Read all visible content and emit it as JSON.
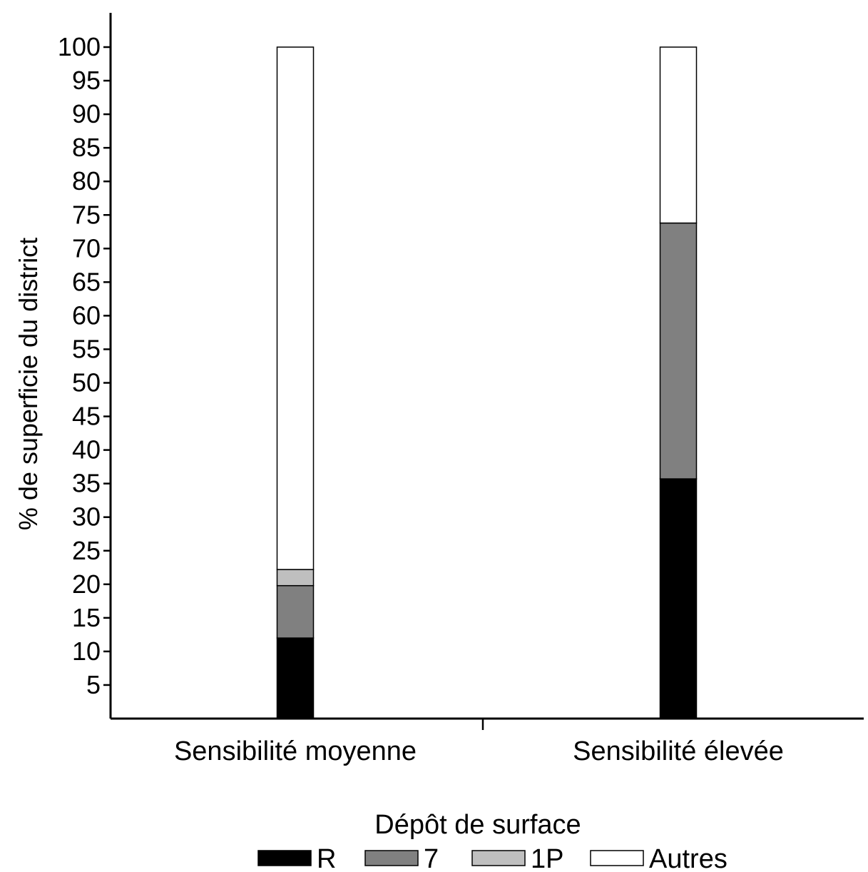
{
  "chart_data": {
    "type": "bar",
    "stacked": true,
    "categories": [
      "Sensibilité moyenne",
      "Sensibilité élevée"
    ],
    "series": [
      {
        "name": "R",
        "color": "#000000",
        "values": [
          12,
          35.7
        ]
      },
      {
        "name": "7",
        "color": "#808080",
        "values": [
          7.8,
          38.1
        ]
      },
      {
        "name": "1P",
        "color": "#bfbfbf",
        "values": [
          2.4,
          0
        ]
      },
      {
        "name": "Autres",
        "color": "#ffffff",
        "values": [
          77.8,
          26.2
        ]
      }
    ],
    "ylabel": "% de superficie du district",
    "xlabel": "",
    "ylim": [
      0,
      100
    ],
    "yticks": [
      5,
      10,
      15,
      20,
      25,
      30,
      35,
      40,
      45,
      50,
      55,
      60,
      65,
      70,
      75,
      80,
      85,
      90,
      95,
      100
    ],
    "grid": false,
    "legend": {
      "title": "Dépôt de surface",
      "position": "bottom"
    }
  }
}
